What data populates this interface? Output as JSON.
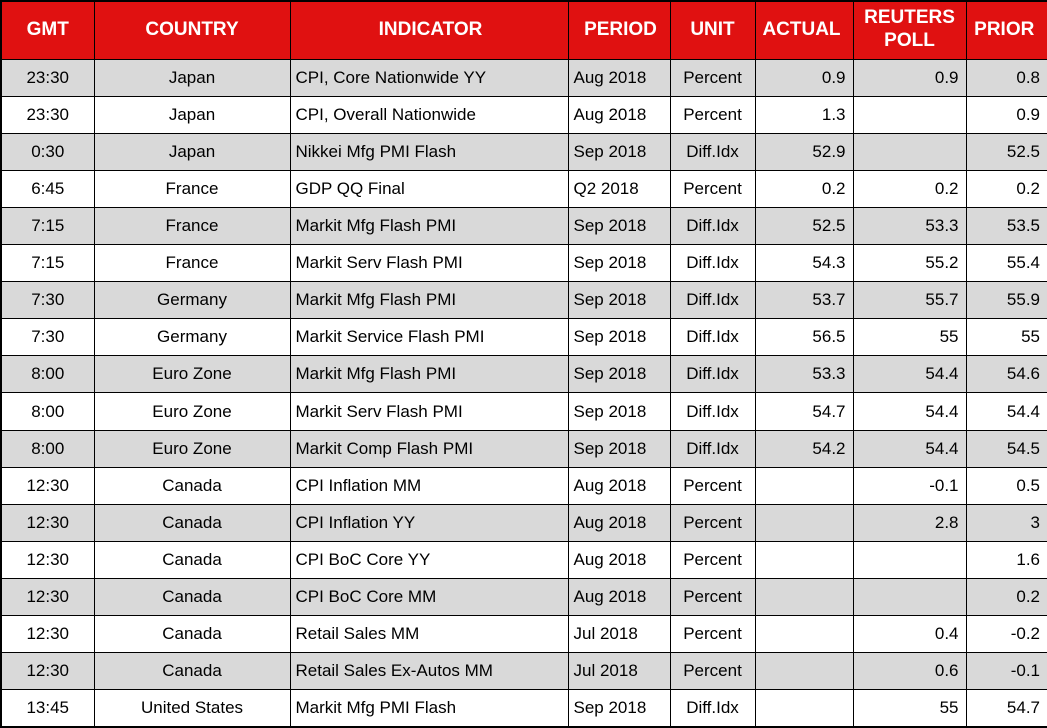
{
  "colors": {
    "header_bg": "#E01111",
    "header_text": "#FFFFFF",
    "row_alt_bg": "#D9D9D9",
    "row_bg": "#FFFFFF",
    "grid": "#000000"
  },
  "chart_data": {
    "type": "table",
    "title": "",
    "columns": [
      {
        "key": "gmt",
        "label": "GMT"
      },
      {
        "key": "country",
        "label": "COUNTRY"
      },
      {
        "key": "indicator",
        "label": "INDICATOR"
      },
      {
        "key": "period",
        "label": "PERIOD"
      },
      {
        "key": "unit",
        "label": "UNIT"
      },
      {
        "key": "actual",
        "label": "ACTUAL"
      },
      {
        "key": "reuters_poll",
        "label": "REUTERS POLL"
      },
      {
        "key": "prior",
        "label": "PRIOR"
      }
    ],
    "rows": [
      {
        "gmt": "23:30",
        "country": "Japan",
        "indicator": "CPI, Core Nationwide YY",
        "period": "Aug 2018",
        "unit": "Percent",
        "actual": "0.9",
        "reuters_poll": "0.9",
        "prior": "0.8"
      },
      {
        "gmt": "23:30",
        "country": "Japan",
        "indicator": "CPI, Overall Nationwide",
        "period": "Aug 2018",
        "unit": "Percent",
        "actual": "1.3",
        "reuters_poll": "",
        "prior": "0.9"
      },
      {
        "gmt": "0:30",
        "country": "Japan",
        "indicator": "Nikkei Mfg PMI Flash",
        "period": "Sep 2018",
        "unit": "Diff.Idx",
        "actual": "52.9",
        "reuters_poll": "",
        "prior": "52.5"
      },
      {
        "gmt": "6:45",
        "country": "France",
        "indicator": "GDP QQ Final",
        "period": "Q2 2018",
        "unit": "Percent",
        "actual": "0.2",
        "reuters_poll": "0.2",
        "prior": "0.2"
      },
      {
        "gmt": "7:15",
        "country": "France",
        "indicator": "Markit Mfg Flash PMI",
        "period": "Sep 2018",
        "unit": "Diff.Idx",
        "actual": "52.5",
        "reuters_poll": "53.3",
        "prior": "53.5"
      },
      {
        "gmt": "7:15",
        "country": "France",
        "indicator": "Markit Serv Flash PMI",
        "period": "Sep 2018",
        "unit": "Diff.Idx",
        "actual": "54.3",
        "reuters_poll": "55.2",
        "prior": "55.4"
      },
      {
        "gmt": "7:30",
        "country": "Germany",
        "indicator": "Markit Mfg Flash PMI",
        "period": "Sep 2018",
        "unit": "Diff.Idx",
        "actual": "53.7",
        "reuters_poll": "55.7",
        "prior": "55.9"
      },
      {
        "gmt": "7:30",
        "country": "Germany",
        "indicator": "Markit Service Flash PMI",
        "period": "Sep 2018",
        "unit": "Diff.Idx",
        "actual": "56.5",
        "reuters_poll": "55",
        "prior": "55"
      },
      {
        "gmt": "8:00",
        "country": "Euro Zone",
        "indicator": "Markit Mfg Flash PMI",
        "period": "Sep 2018",
        "unit": "Diff.Idx",
        "actual": "53.3",
        "reuters_poll": "54.4",
        "prior": "54.6"
      },
      {
        "gmt": "8:00",
        "country": "Euro Zone",
        "indicator": "Markit Serv Flash PMI",
        "period": "Sep 2018",
        "unit": "Diff.Idx",
        "actual": "54.7",
        "reuters_poll": "54.4",
        "prior": "54.4"
      },
      {
        "gmt": "8:00",
        "country": "Euro Zone",
        "indicator": "Markit Comp Flash PMI",
        "period": "Sep 2018",
        "unit": "Diff.Idx",
        "actual": "54.2",
        "reuters_poll": "54.4",
        "prior": "54.5"
      },
      {
        "gmt": "12:30",
        "country": "Canada",
        "indicator": "CPI Inflation MM",
        "period": "Aug 2018",
        "unit": "Percent",
        "actual": "",
        "reuters_poll": "-0.1",
        "prior": "0.5"
      },
      {
        "gmt": "12:30",
        "country": "Canada",
        "indicator": "CPI Inflation YY",
        "period": "Aug 2018",
        "unit": "Percent",
        "actual": "",
        "reuters_poll": "2.8",
        "prior": "3"
      },
      {
        "gmt": "12:30",
        "country": "Canada",
        "indicator": "CPI BoC Core YY",
        "period": "Aug 2018",
        "unit": "Percent",
        "actual": "",
        "reuters_poll": "",
        "prior": "1.6"
      },
      {
        "gmt": "12:30",
        "country": "Canada",
        "indicator": "CPI BoC Core MM",
        "period": "Aug 2018",
        "unit": "Percent",
        "actual": "",
        "reuters_poll": "",
        "prior": "0.2"
      },
      {
        "gmt": "12:30",
        "country": "Canada",
        "indicator": "Retail Sales MM",
        "period": "Jul 2018",
        "unit": "Percent",
        "actual": "",
        "reuters_poll": "0.4",
        "prior": "-0.2"
      },
      {
        "gmt": "12:30",
        "country": "Canada",
        "indicator": "Retail Sales Ex-Autos MM",
        "period": "Jul 2018",
        "unit": "Percent",
        "actual": "",
        "reuters_poll": "0.6",
        "prior": "-0.1"
      },
      {
        "gmt": "13:45",
        "country": "United States",
        "indicator": "Markit Mfg PMI Flash",
        "period": "Sep 2018",
        "unit": "Diff.Idx",
        "actual": "",
        "reuters_poll": "55",
        "prior": "54.7"
      }
    ]
  }
}
